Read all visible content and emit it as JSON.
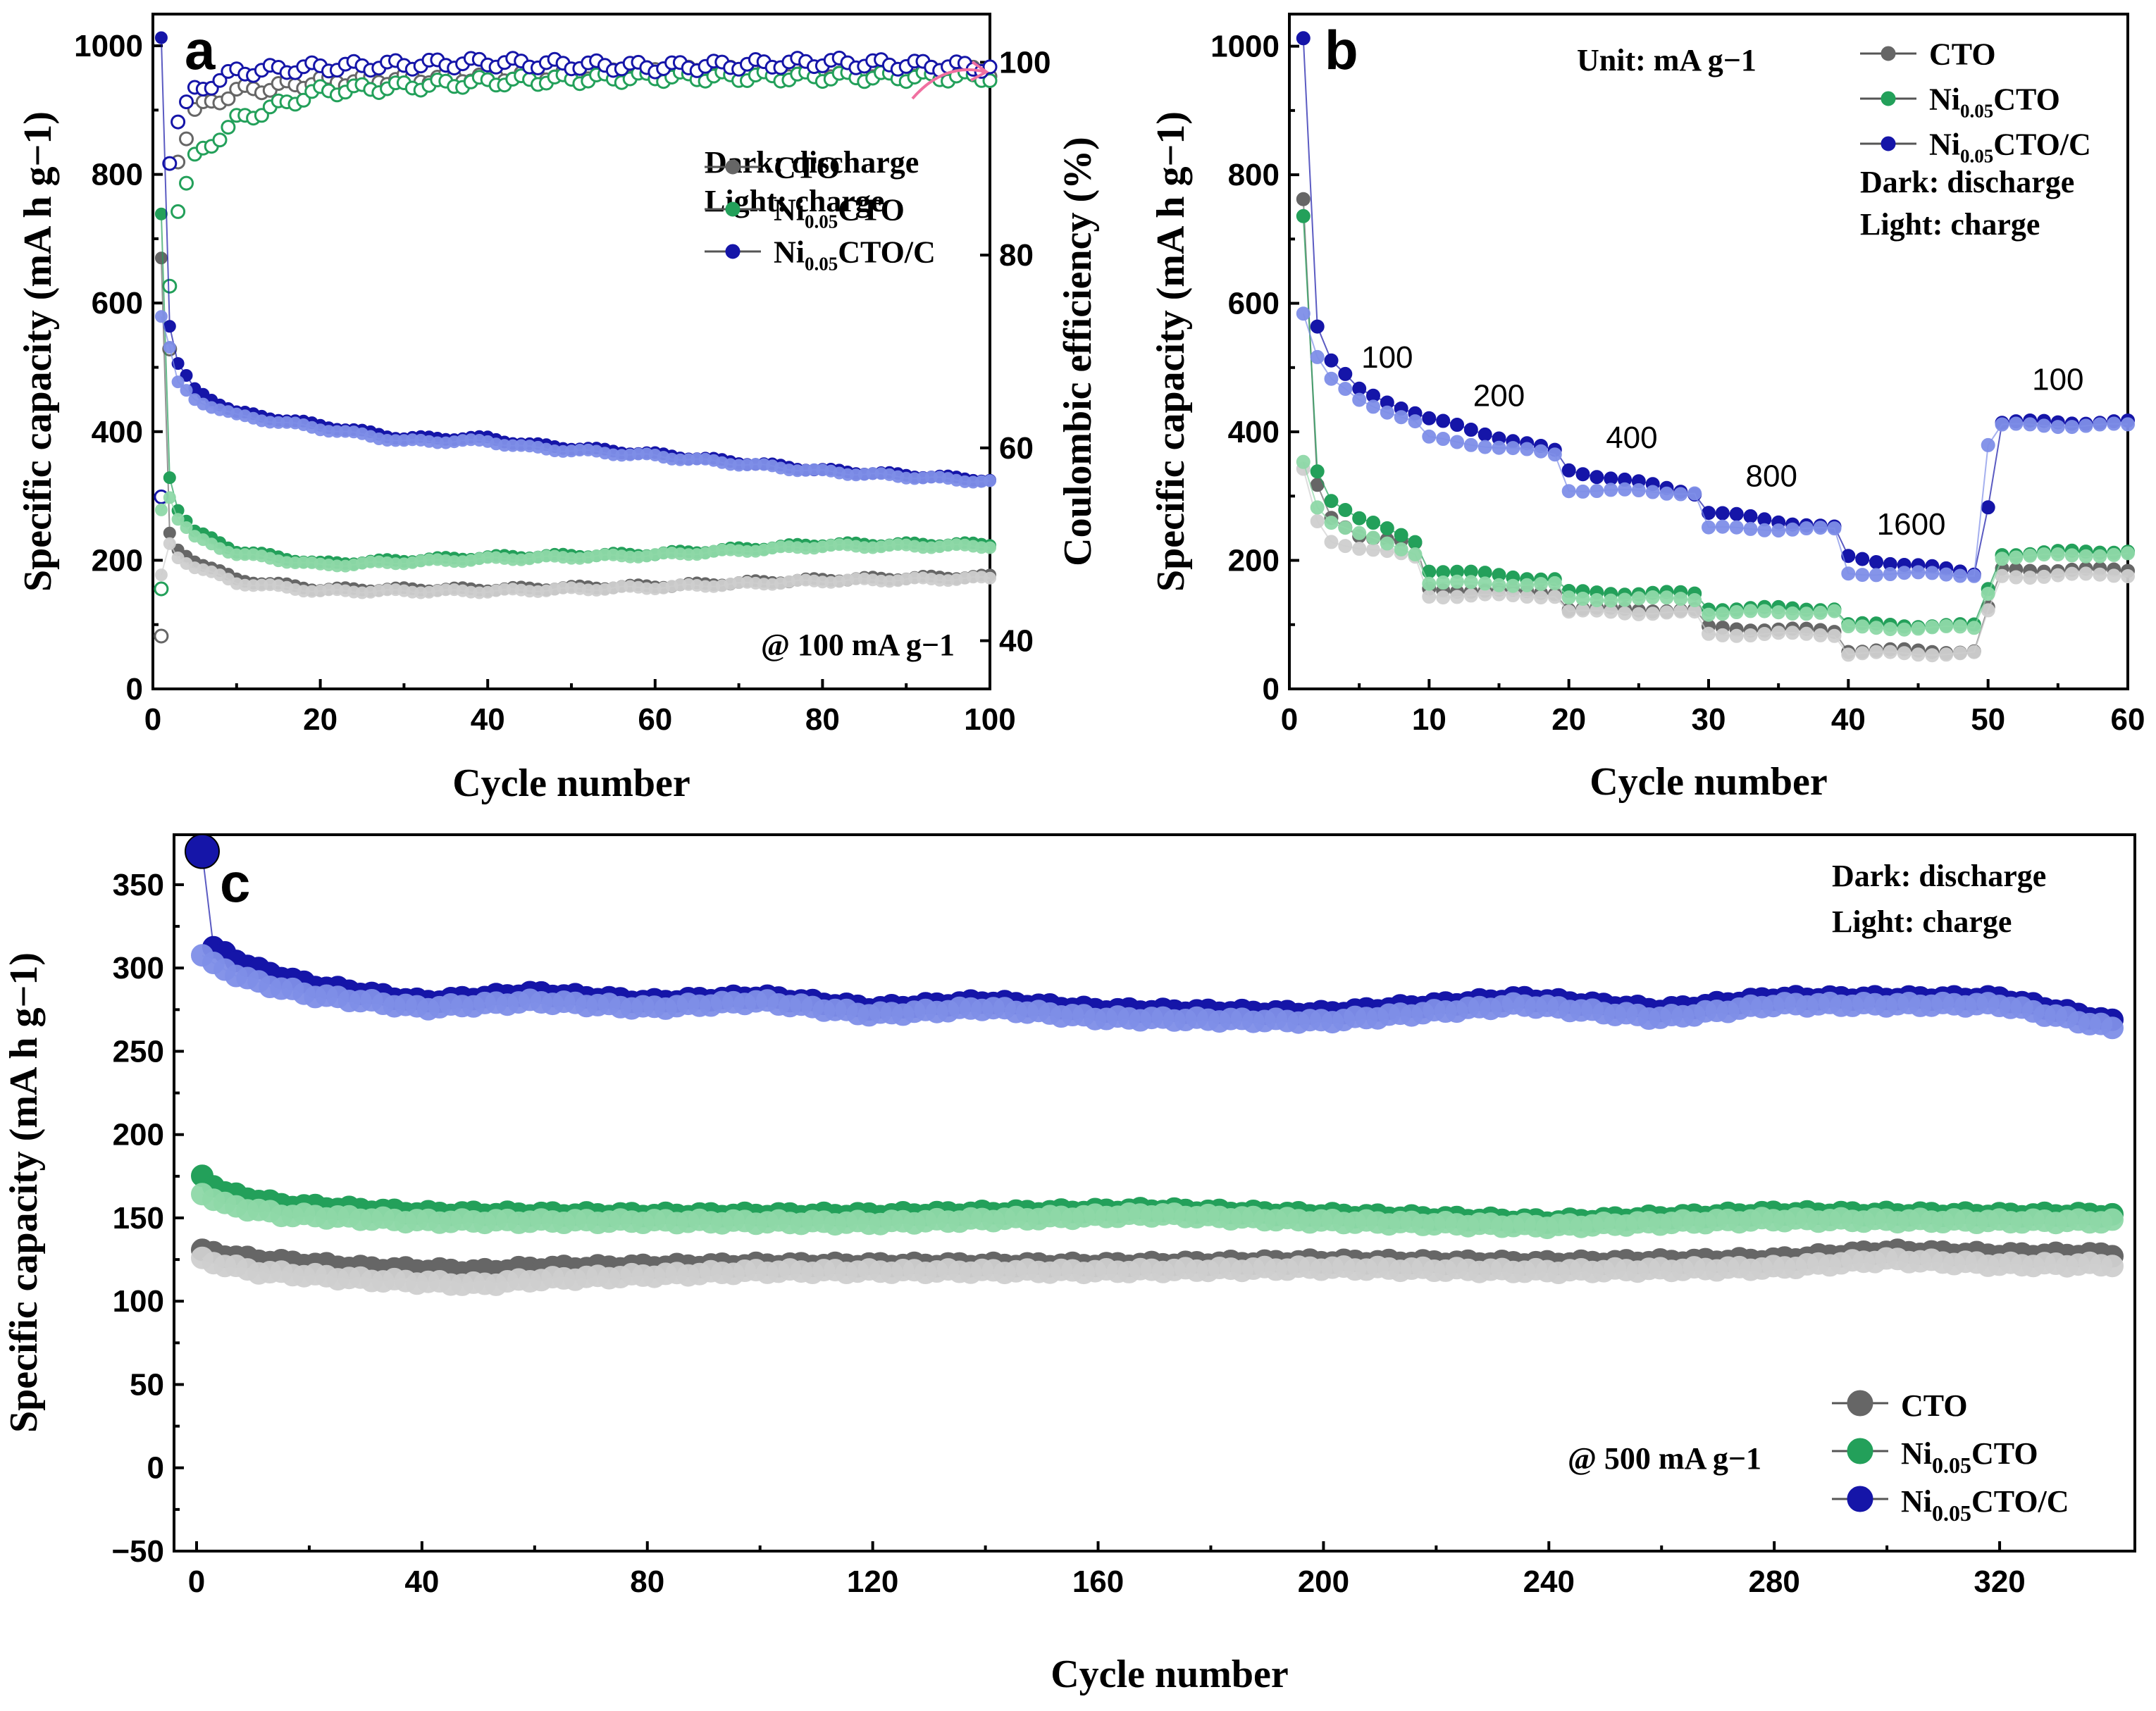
{
  "colors": {
    "cto_dark": "#666666",
    "cto_light": "#cfcfcf",
    "ni_dark": "#23a05a",
    "ni_light": "#8fd9a8",
    "nic_dark": "#1515a8",
    "nic_light": "#7f8fe8",
    "arrow": "#f070a0"
  },
  "chart_data": [
    {
      "panel": "a",
      "type": "scatter",
      "xlabel": "Cycle number",
      "ylabel": "Specific capacity (mA h g−1)",
      "y2label": "Coulombic efficiency (%)",
      "xlim": [
        0,
        100
      ],
      "ylim": [
        0,
        1000
      ],
      "y2lim": [
        35,
        105
      ],
      "xticks": [
        0,
        20,
        40,
        60,
        80,
        100
      ],
      "yticks": [
        0,
        200,
        400,
        600,
        800,
        1000
      ],
      "y2ticks": [
        40,
        60,
        80,
        100
      ],
      "legend": [
        "CTO",
        "Ni0.05CTO",
        "Ni0.05CTO/C"
      ],
      "notes": [
        "Dark: discharge",
        "Light: charge"
      ],
      "condition": "@ 100 mA g−1",
      "series": [
        {
          "name": "CTO discharge",
          "x": [
            1,
            2,
            3,
            5,
            10,
            20,
            40,
            60,
            80,
            100
          ],
          "y": [
            668,
            240,
            215,
            200,
            170,
            155,
            155,
            160,
            170,
            175
          ]
        },
        {
          "name": "CTO charge",
          "x": [
            1,
            2,
            3,
            5,
            10,
            20,
            40,
            60,
            80,
            100
          ],
          "y": [
            175,
            225,
            205,
            190,
            165,
            152,
            152,
            158,
            168,
            172
          ]
        },
        {
          "name": "Ni0.05CTO discharge",
          "x": [
            1,
            2,
            3,
            5,
            10,
            20,
            40,
            60,
            80,
            100
          ],
          "y": [
            738,
            330,
            280,
            245,
            215,
            195,
            205,
            210,
            225,
            225
          ]
        },
        {
          "name": "Ni0.05CTO charge",
          "x": [
            1,
            2,
            3,
            5,
            10,
            20,
            40,
            60,
            80,
            100
          ],
          "y": [
            280,
            300,
            265,
            235,
            210,
            192,
            202,
            208,
            222,
            222
          ]
        },
        {
          "name": "Ni0.05CTO/C discharge",
          "x": [
            1,
            2,
            3,
            5,
            10,
            20,
            30,
            40,
            45,
            60,
            80,
            100
          ],
          "y": [
            1015,
            565,
            505,
            465,
            430,
            410,
            390,
            390,
            380,
            365,
            340,
            325
          ]
        },
        {
          "name": "Ni0.05CTO/C charge",
          "x": [
            1,
            2,
            3,
            5,
            10,
            20,
            30,
            40,
            45,
            60,
            80,
            100
          ],
          "y": [
            580,
            530,
            475,
            450,
            425,
            405,
            385,
            385,
            375,
            362,
            338,
            322
          ]
        },
        {
          "name": "CTO CE",
          "axis": "y2",
          "x": [
            1,
            2,
            3,
            5,
            10,
            20,
            40,
            60,
            80,
            100
          ],
          "y": [
            40,
            70,
            90,
            95,
            97,
            98,
            98.5,
            99,
            99,
            99
          ]
        },
        {
          "name": "Ni0.05CTO CE",
          "axis": "y2",
          "x": [
            1,
            2,
            3,
            5,
            10,
            20,
            40,
            60,
            80,
            100
          ],
          "y": [
            45,
            77,
            85,
            90,
            94,
            97,
            98,
            98.5,
            98.5,
            98.5
          ]
        },
        {
          "name": "Ni0.05CTO/C CE",
          "axis": "y2",
          "x": [
            1,
            2,
            3,
            5,
            10,
            20,
            40,
            60,
            80,
            100
          ],
          "y": [
            55,
            90,
            94,
            97,
            99,
            99.5,
            100,
            99.5,
            100,
            99.5
          ]
        }
      ]
    },
    {
      "panel": "b",
      "type": "scatter",
      "xlabel": "Cycle number",
      "ylabel": "Specific capacity (mA h g−1)",
      "xlim": [
        0,
        60
      ],
      "ylim": [
        0,
        1050
      ],
      "xticks": [
        0,
        10,
        20,
        30,
        40,
        50,
        60
      ],
      "yticks": [
        0,
        200,
        400,
        600,
        800,
        1000
      ],
      "unit": "Unit:  mA g−1",
      "legend": [
        "CTO",
        "Ni0.05CTO",
        "Ni0.05CTO/C"
      ],
      "notes": [
        "Dark: discharge",
        "Light: charge"
      ],
      "rate_labels": [
        {
          "text": "100",
          "x": 7,
          "y": 500
        },
        {
          "text": "200",
          "x": 15,
          "y": 440
        },
        {
          "text": "400",
          "x": 24.5,
          "y": 375
        },
        {
          "text": "800",
          "x": 34.5,
          "y": 315
        },
        {
          "text": "1600",
          "x": 44.5,
          "y": 240
        },
        {
          "text": "100",
          "x": 55,
          "y": 465
        }
      ],
      "series": [
        {
          "name": "CTO discharge",
          "x": [
            1,
            2,
            3,
            5,
            9,
            10,
            19,
            20,
            29,
            30,
            39,
            40,
            49,
            50,
            51,
            60
          ],
          "y": [
            760,
            315,
            265,
            240,
            225,
            155,
            150,
            125,
            122,
            95,
            90,
            60,
            58,
            125,
            185,
            185
          ]
        },
        {
          "name": "CTO charge",
          "x": [
            1,
            2,
            3,
            5,
            9,
            10,
            19,
            20,
            29,
            30,
            39,
            40,
            49,
            50,
            51,
            60
          ],
          "y": [
            340,
            260,
            230,
            220,
            205,
            145,
            145,
            120,
            118,
            85,
            85,
            55,
            55,
            120,
            175,
            178
          ]
        },
        {
          "name": "Ni0.05CTO discharge",
          "x": [
            1,
            2,
            3,
            5,
            9,
            10,
            19,
            20,
            29,
            30,
            39,
            40,
            49,
            50,
            51,
            60
          ],
          "y": [
            735,
            340,
            295,
            265,
            230,
            185,
            170,
            150,
            148,
            125,
            125,
            100,
            98,
            155,
            210,
            215
          ]
        },
        {
          "name": "Ni0.05CTO charge",
          "x": [
            1,
            2,
            3,
            5,
            9,
            10,
            19,
            20,
            29,
            30,
            39,
            40,
            49,
            50,
            51,
            60
          ],
          "y": [
            355,
            285,
            260,
            240,
            212,
            165,
            162,
            140,
            140,
            118,
            120,
            95,
            95,
            150,
            205,
            210
          ]
        },
        {
          "name": "Ni0.05CTO/C discharge",
          "x": [
            1,
            2,
            3,
            5,
            9,
            10,
            19,
            20,
            29,
            30,
            39,
            40,
            49,
            50,
            51,
            60
          ],
          "y": [
            1015,
            565,
            510,
            465,
            430,
            420,
            370,
            340,
            305,
            275,
            250,
            205,
            180,
            285,
            415,
            415
          ]
        },
        {
          "name": "Ni0.05CTO/C charge",
          "x": [
            1,
            2,
            3,
            5,
            9,
            10,
            19,
            20,
            29,
            30,
            39,
            40,
            49,
            50,
            51,
            60
          ],
          "y": [
            585,
            515,
            480,
            450,
            415,
            390,
            365,
            310,
            305,
            250,
            248,
            180,
            178,
            380,
            410,
            410
          ]
        }
      ]
    },
    {
      "panel": "c",
      "type": "scatter",
      "xlabel": "Cycle number",
      "ylabel": "Specific capacity (mA h g−1)",
      "xlim": [
        -4,
        344
      ],
      "ylim": [
        -50,
        380
      ],
      "xticks": [
        0,
        40,
        80,
        120,
        160,
        200,
        240,
        280,
        320
      ],
      "yticks": [
        -50,
        0,
        50,
        100,
        150,
        200,
        250,
        300,
        350
      ],
      "legend": [
        "CTO",
        "Ni0.05CTO",
        "Ni0.05CTO/C"
      ],
      "notes": [
        "Dark: discharge",
        "Light: charge"
      ],
      "condition": "@ 500 mA g−1",
      "series": [
        {
          "name": "CTO discharge",
          "x": [
            1,
            10,
            30,
            50,
            60,
            100,
            140,
            160,
            200,
            240,
            280,
            300,
            320,
            340
          ],
          "y": [
            130,
            125,
            120,
            118,
            120,
            122,
            122,
            122,
            124,
            123,
            125,
            130,
            128,
            128
          ]
        },
        {
          "name": "CTO charge",
          "x": [
            1,
            10,
            30,
            50,
            60,
            100,
            140,
            160,
            200,
            240,
            280,
            300,
            320,
            340
          ],
          "y": [
            125,
            118,
            113,
            110,
            113,
            118,
            118,
            118,
            120,
            118,
            120,
            125,
            122,
            122
          ]
        },
        {
          "name": "Ni0.05CTO discharge",
          "x": [
            1,
            5,
            15,
            40,
            80,
            120,
            170,
            200,
            240,
            280,
            320,
            340
          ],
          "y": [
            175,
            165,
            158,
            153,
            152,
            152,
            155,
            152,
            148,
            153,
            152,
            152
          ]
        },
        {
          "name": "Ni0.05CTO charge",
          "x": [
            1,
            5,
            15,
            40,
            80,
            120,
            170,
            200,
            240,
            280,
            320,
            340
          ],
          "y": [
            165,
            158,
            152,
            148,
            148,
            147,
            152,
            148,
            145,
            149,
            148,
            148
          ]
        },
        {
          "name": "Ni0.05CTO/C discharge",
          "x": [
            1,
            3,
            10,
            20,
            40,
            60,
            80,
            100,
            120,
            140,
            160,
            200,
            235,
            260,
            280,
            320,
            340
          ],
          "y": [
            370,
            312,
            300,
            290,
            280,
            285,
            280,
            283,
            276,
            280,
            275,
            273,
            282,
            275,
            282,
            282,
            268
          ]
        },
        {
          "name": "Ni0.05CTO/C charge",
          "x": [
            1,
            3,
            10,
            20,
            40,
            60,
            80,
            100,
            120,
            140,
            160,
            200,
            235,
            260,
            280,
            320,
            340
          ],
          "y": [
            308,
            302,
            292,
            284,
            276,
            280,
            276,
            280,
            272,
            276,
            270,
            268,
            278,
            270,
            278,
            278,
            264
          ]
        }
      ]
    }
  ]
}
